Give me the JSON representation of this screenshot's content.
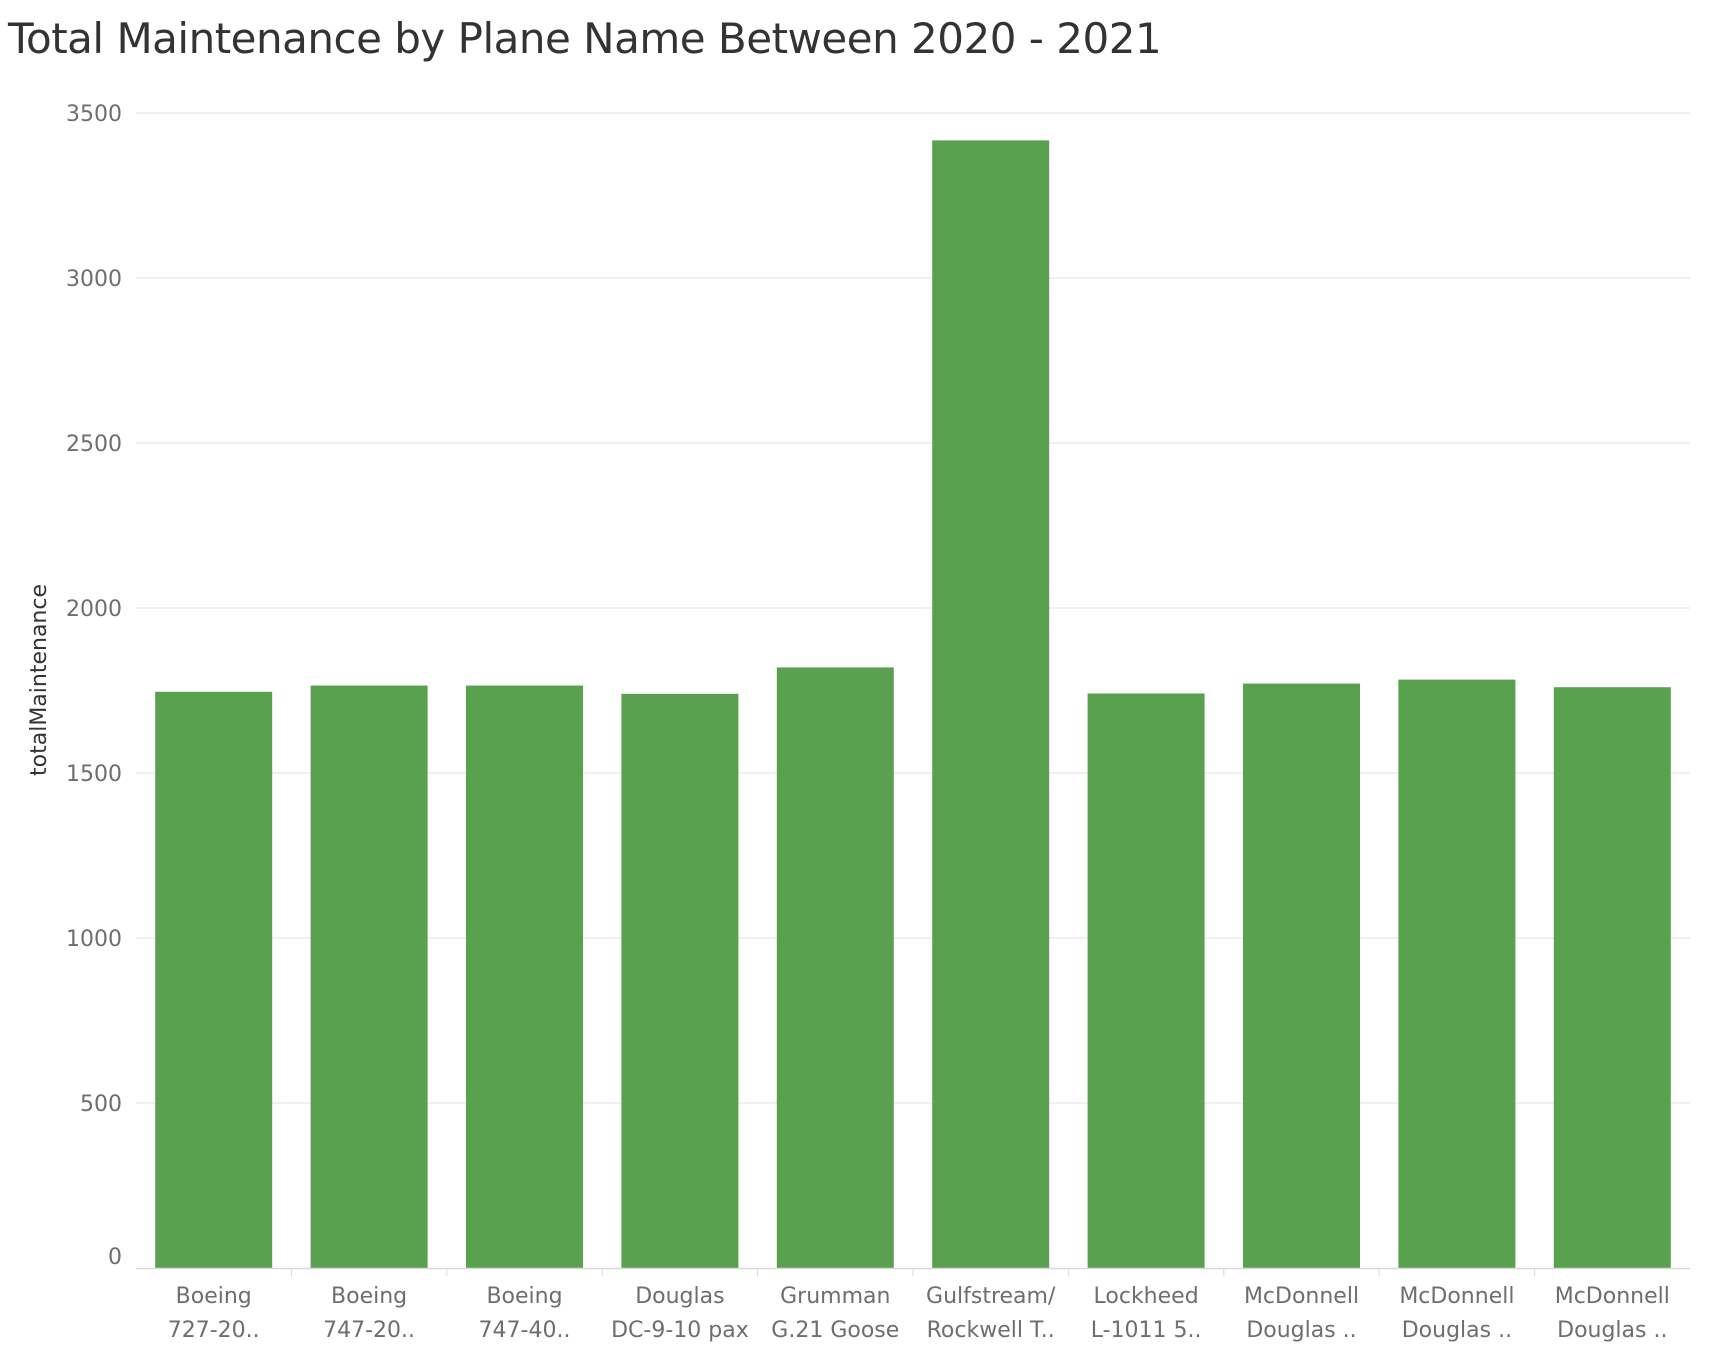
{
  "chart_data": {
    "type": "bar",
    "title": "Total Maintenance by Plane Name Between 2020 - 2021",
    "xlabel": "",
    "ylabel": "totalMaintenance",
    "ylim": [
      0,
      3600
    ],
    "yticks": [
      0,
      500,
      1000,
      1500,
      2000,
      2500,
      3000,
      3500
    ],
    "grid": true,
    "categories": [
      [
        "Boeing",
        "727-20.."
      ],
      [
        "Boeing",
        "747-20.."
      ],
      [
        "Boeing",
        "747-40.."
      ],
      [
        "Douglas",
        "DC-9-10 pax"
      ],
      [
        "Grumman",
        "G.21 Goose"
      ],
      [
        "Gulfstream/",
        "Rockwell T.."
      ],
      [
        "Lockheed",
        "L-1011 5.."
      ],
      [
        "McDonnell",
        "Douglas .."
      ],
      [
        "McDonnell",
        "Douglas .."
      ],
      [
        "McDonnell",
        "Douglas .."
      ]
    ],
    "values": [
      1746,
      1765,
      1765,
      1740,
      1820,
      3417,
      1741,
      1771,
      1783,
      1760
    ],
    "bar_color": "#59a14f",
    "grid_color": "#ececec",
    "axis_color": "#d9d9d9"
  }
}
